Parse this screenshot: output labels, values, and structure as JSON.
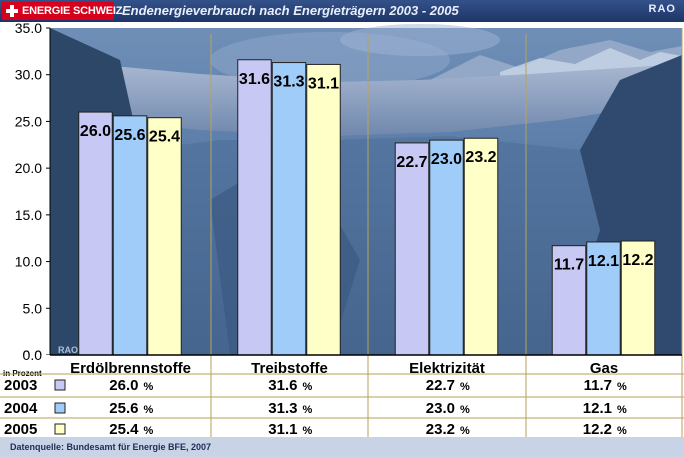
{
  "header": {
    "brand": "ENERGIE SCHWEIZ",
    "title": "Endenergieverbrauch nach Energieträgern 2003 - 2005",
    "rao": "RAO",
    "flag_icon": "swiss-cross-icon"
  },
  "chart_data": {
    "type": "bar",
    "categories": [
      "Erdölbrennstoffe",
      "Treibstoffe",
      "Elektrizität",
      "Gas"
    ],
    "series": [
      {
        "name": "2003",
        "values": [
          26.0,
          31.6,
          22.7,
          11.7
        ],
        "color": "#c8c8f4"
      },
      {
        "name": "2004",
        "values": [
          25.6,
          31.3,
          23.0,
          12.1
        ],
        "color": "#9fccf8"
      },
      {
        "name": "2005",
        "values": [
          25.4,
          31.1,
          23.2,
          12.2
        ],
        "color": "#ffffc8"
      }
    ],
    "yticks": [
      "0.0",
      "5.0",
      "10.0",
      "15.0",
      "20.0",
      "25.0",
      "30.0",
      "35.0"
    ],
    "ylim": [
      0,
      35
    ],
    "table_unit_label": "in Prozent",
    "percent_sign": "%",
    "watermark": "RAO"
  },
  "footer": {
    "source": "Datenquelle: Bundesamt für Energie BFE, 2007"
  }
}
